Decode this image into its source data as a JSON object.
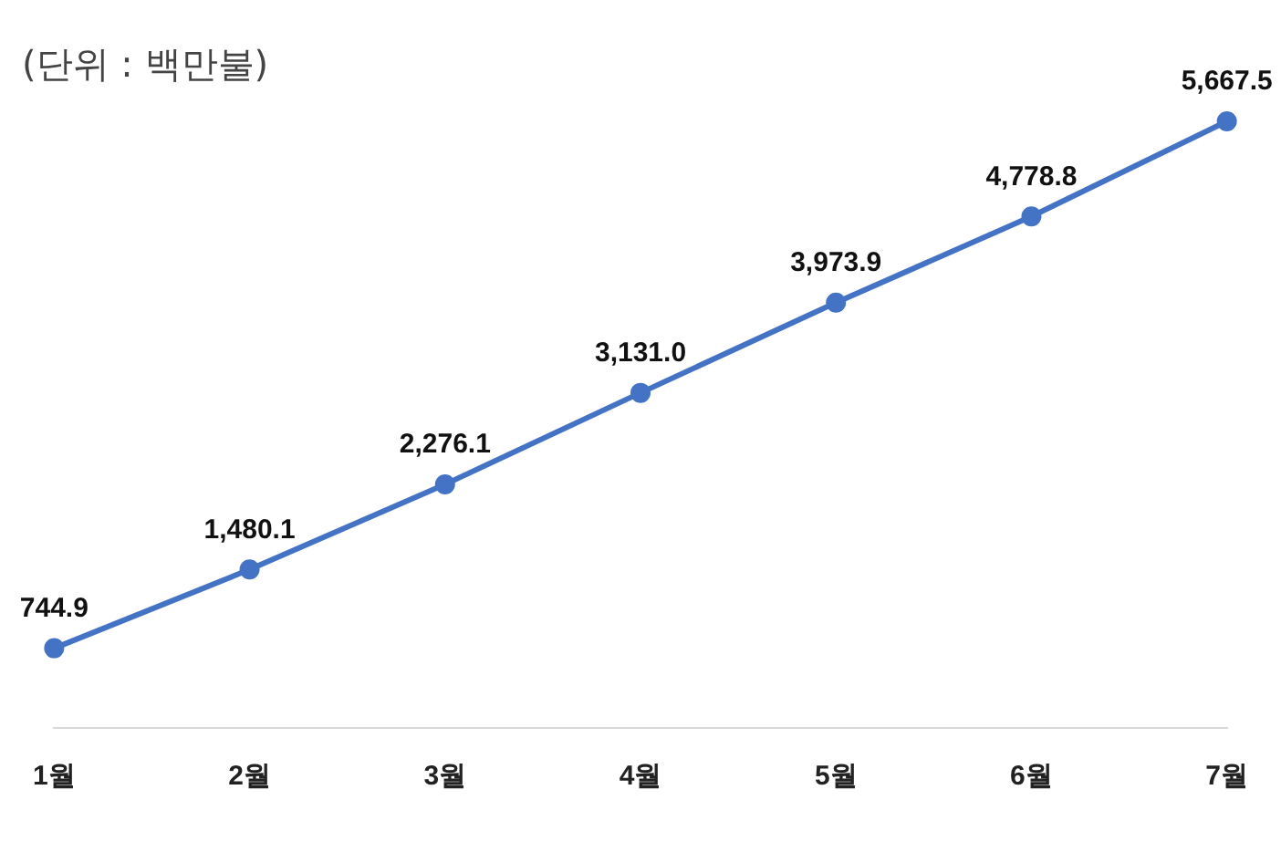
{
  "chart_data": {
    "type": "line",
    "annotations": [
      "(단위 : 백만불)"
    ],
    "categories": [
      "1월",
      "2월",
      "3월",
      "4월",
      "5월",
      "6월",
      "7월"
    ],
    "series": [
      {
        "color": "#4472c4",
        "values": [
          744.9,
          1480.1,
          2276.1,
          3131.0,
          3973.9,
          4778.8,
          5667.5
        ],
        "value_labels": [
          "744.9",
          "1,480.1",
          "2,276.1",
          "3,131.0",
          "3,973.9",
          "4,778.8",
          "5,667.5"
        ]
      }
    ],
    "grid": false,
    "legend": false,
    "marker": "circle",
    "line_style": "solid",
    "tick_labels": "x"
  }
}
